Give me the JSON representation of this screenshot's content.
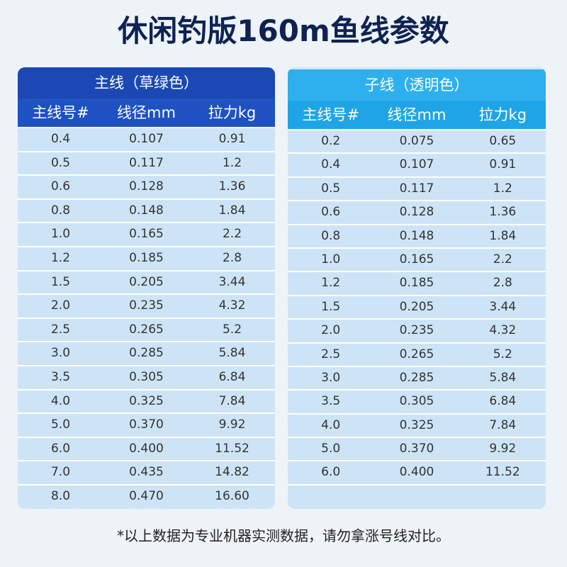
{
  "title": "休闲钓版160m鱼线参数",
  "tables": [
    {
      "caption": "主线（草绿色）",
      "columns": [
        "主线号#",
        "线径mm",
        "拉力kg"
      ],
      "rows": [
        [
          "0.4",
          "0.107",
          "0.91"
        ],
        [
          "0.5",
          "0.117",
          "1.2"
        ],
        [
          "0.6",
          "0.128",
          "1.36"
        ],
        [
          "0.8",
          "0.148",
          "1.84"
        ],
        [
          "1.0",
          "0.165",
          "2.2"
        ],
        [
          "1.2",
          "0.185",
          "2.8"
        ],
        [
          "1.5",
          "0.205",
          "3.44"
        ],
        [
          "2.0",
          "0.235",
          "4.32"
        ],
        [
          "2.5",
          "0.265",
          "5.2"
        ],
        [
          "3.0",
          "0.285",
          "5.84"
        ],
        [
          "3.5",
          "0.305",
          "6.84"
        ],
        [
          "4.0",
          "0.325",
          "7.84"
        ],
        [
          "5.0",
          "0.370",
          "9.92"
        ],
        [
          "6.0",
          "0.400",
          "11.52"
        ],
        [
          "7.0",
          "0.435",
          "14.82"
        ],
        [
          "8.0",
          "0.470",
          "16.60"
        ]
      ]
    },
    {
      "caption": "子线（透明色）",
      "columns": [
        "主线号#",
        "线径mm",
        "拉力kg"
      ],
      "rows": [
        [
          "0.2",
          "0.075",
          "0.65"
        ],
        [
          "0.4",
          "0.107",
          "0.91"
        ],
        [
          "0.5",
          "0.117",
          "1.2"
        ],
        [
          "0.6",
          "0.128",
          "1.36"
        ],
        [
          "0.8",
          "0.148",
          "1.84"
        ],
        [
          "1.0",
          "0.165",
          "2.2"
        ],
        [
          "1.2",
          "0.185",
          "2.8"
        ],
        [
          "1.5",
          "0.205",
          "3.44"
        ],
        [
          "2.0",
          "0.235",
          "4.32"
        ],
        [
          "2.5",
          "0.265",
          "5.2"
        ],
        [
          "3.0",
          "0.285",
          "5.84"
        ],
        [
          "3.5",
          "0.305",
          "6.84"
        ],
        [
          "4.0",
          "0.325",
          "7.84"
        ],
        [
          "5.0",
          "0.370",
          "9.92"
        ],
        [
          "6.0",
          "0.400",
          "11.52"
        ]
      ]
    }
  ],
  "footnote": "*以上数据为专业机器实测数据，请勿拿涨号线对比。"
}
